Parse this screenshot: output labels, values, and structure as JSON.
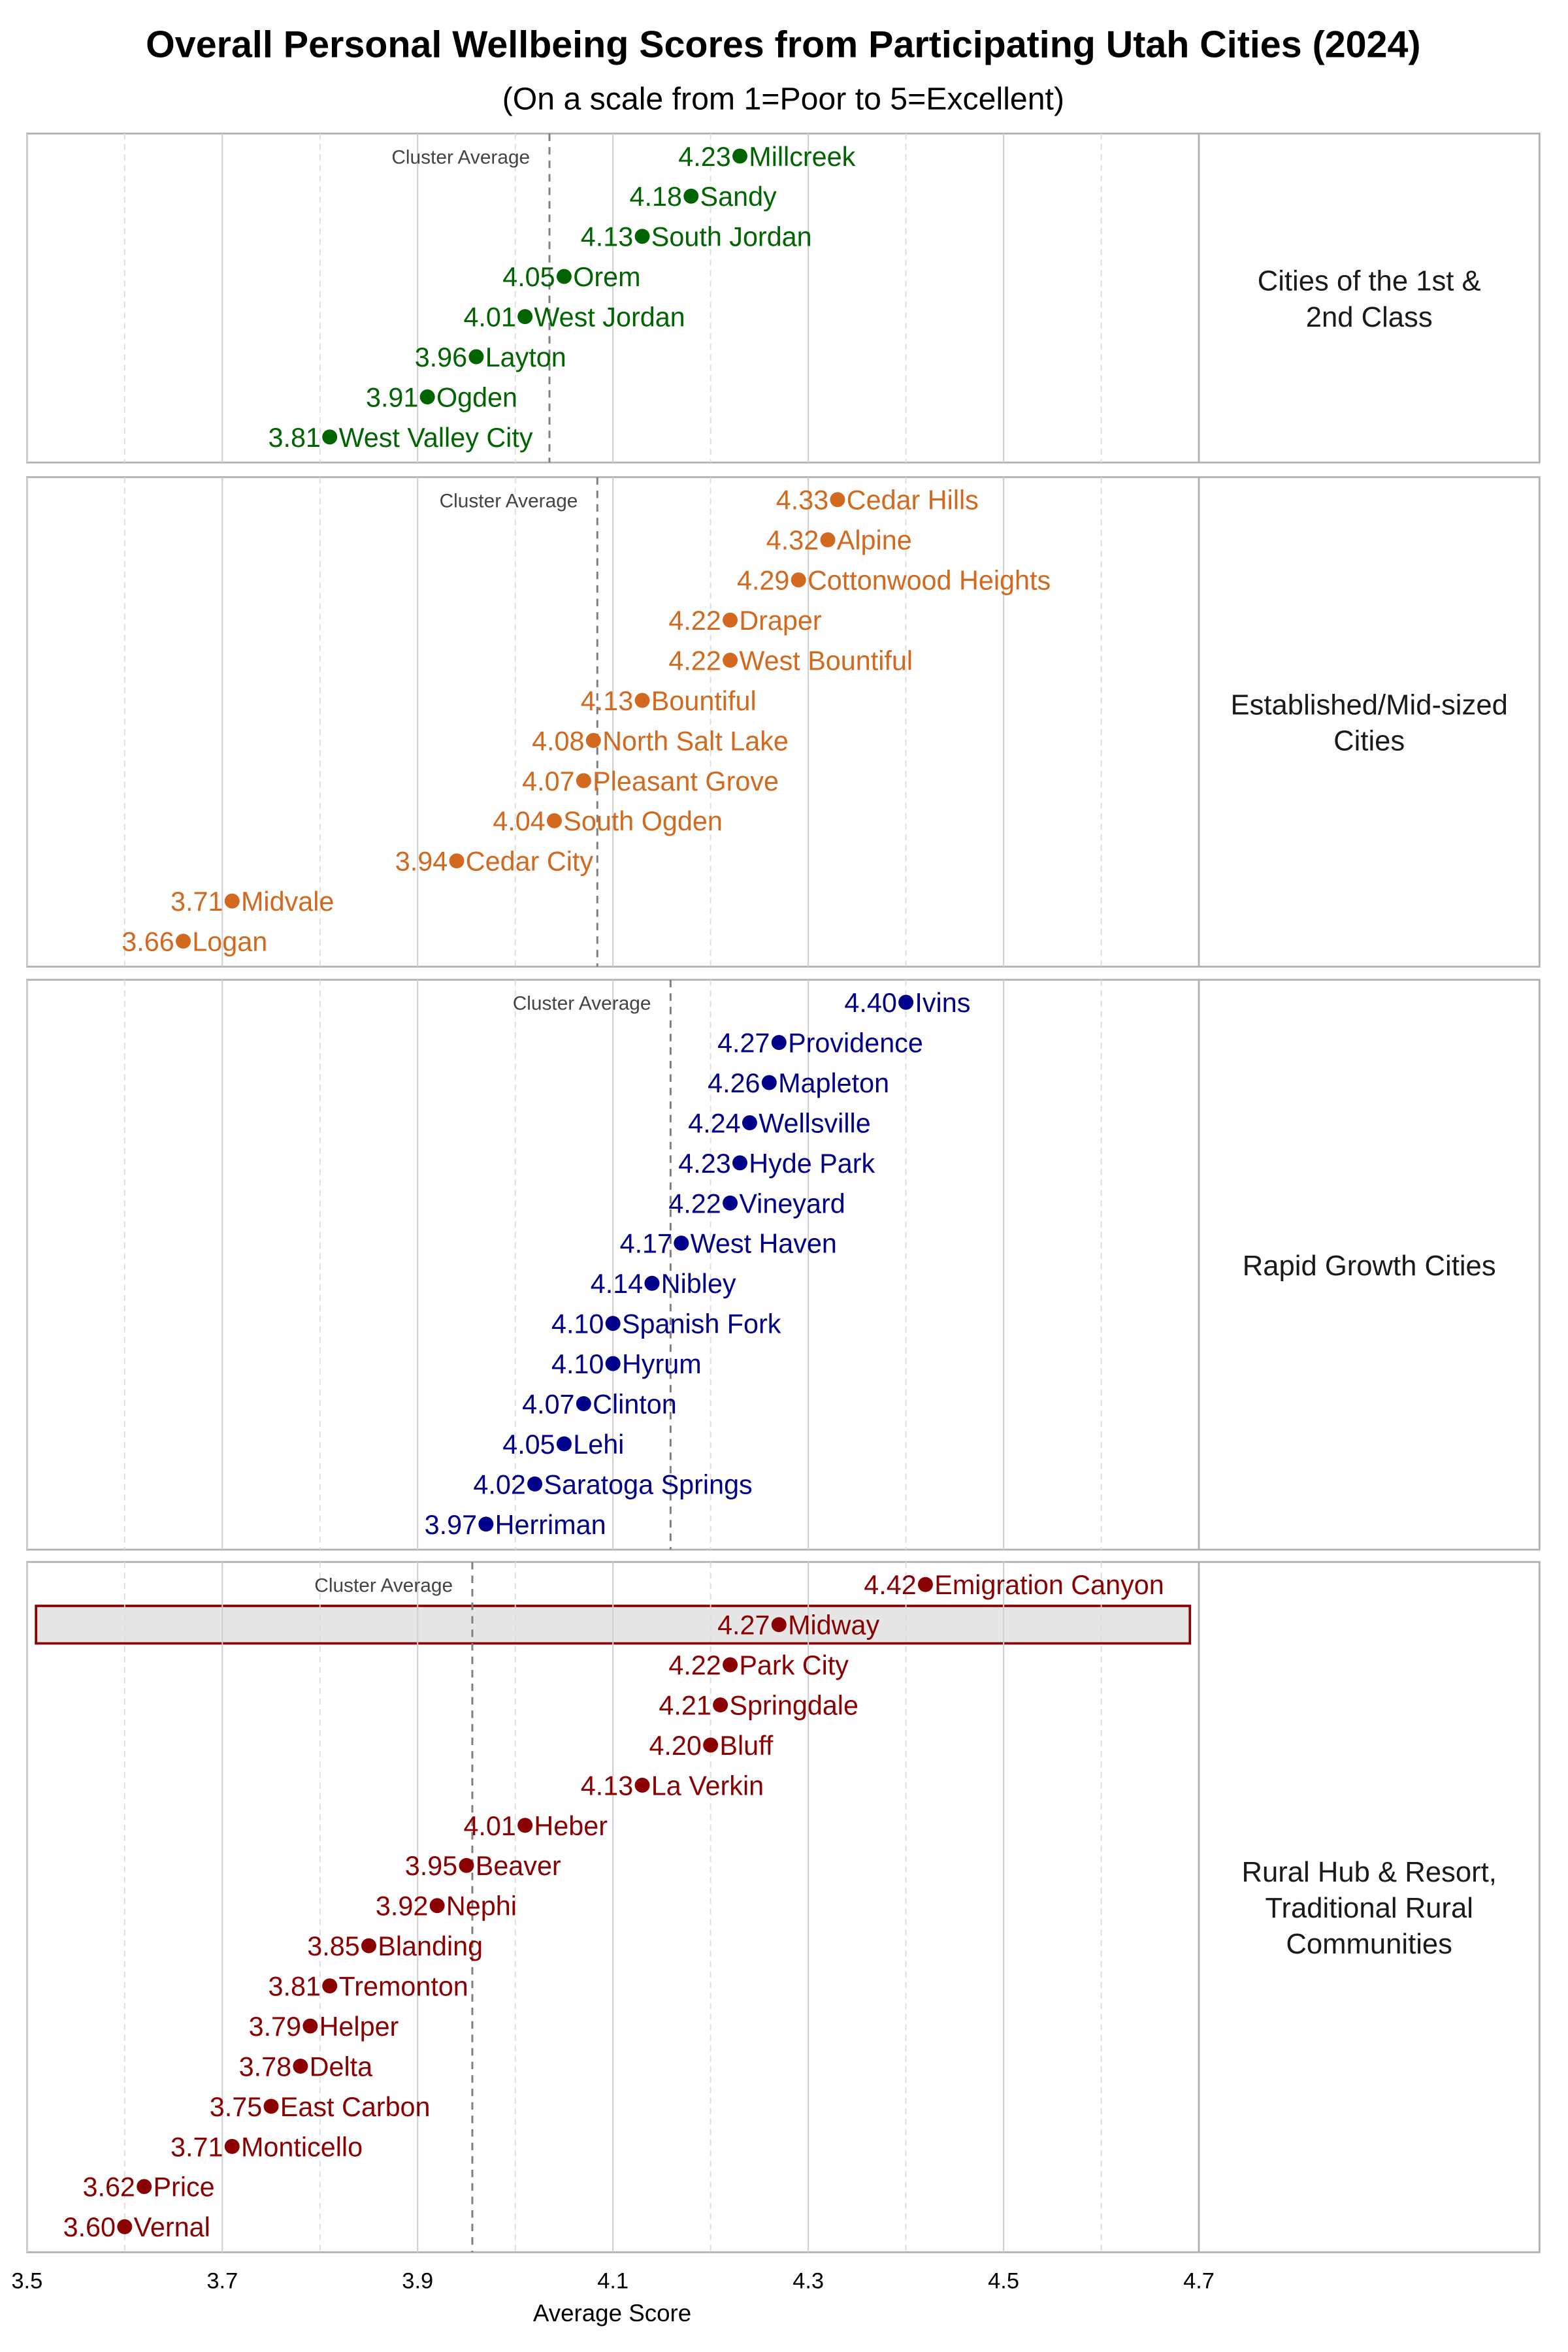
{
  "chart_data": {
    "type": "scatter",
    "title": "Overall Personal Wellbeing Scores from Participating Utah Cities (2024)",
    "subtitle": "(On a scale from 1=Poor to 5=Excellent)",
    "xlabel": "Average Score",
    "xlim": [
      3.5,
      4.7
    ],
    "xticks": [
      "3.5",
      "3.7",
      "3.9",
      "4.1",
      "4.3",
      "4.5",
      "4.7"
    ],
    "grid": true,
    "reference_line_label": "Cluster Average",
    "highlighted_city": "Midway",
    "panels": [
      {
        "name": "Cities of the 1st & 2nd Class",
        "label_lines": [
          "Cities of the 1st &",
          "2nd Class"
        ],
        "color": "#006400",
        "cluster_average": 4.035,
        "points": [
          {
            "city": "Millcreek",
            "value": 4.23
          },
          {
            "city": "Sandy",
            "value": 4.18
          },
          {
            "city": "South Jordan",
            "value": 4.13
          },
          {
            "city": "Orem",
            "value": 4.05
          },
          {
            "city": "West Jordan",
            "value": 4.01
          },
          {
            "city": "Layton",
            "value": 3.96
          },
          {
            "city": "Ogden",
            "value": 3.91
          },
          {
            "city": "West Valley City",
            "value": 3.81
          }
        ]
      },
      {
        "name": "Established/Mid-sized Cities",
        "label_lines": [
          "Established/Mid-sized",
          "Cities"
        ],
        "color": "#d2691e",
        "cluster_average": 4.084,
        "points": [
          {
            "city": "Cedar Hills",
            "value": 4.33
          },
          {
            "city": "Alpine",
            "value": 4.32
          },
          {
            "city": "Cottonwood Heights",
            "value": 4.29
          },
          {
            "city": "Draper",
            "value": 4.22
          },
          {
            "city": "West Bountiful",
            "value": 4.22
          },
          {
            "city": "Bountiful",
            "value": 4.13
          },
          {
            "city": "North Salt Lake",
            "value": 4.08
          },
          {
            "city": "Pleasant Grove",
            "value": 4.07
          },
          {
            "city": "South Ogden",
            "value": 4.04
          },
          {
            "city": "Cedar City",
            "value": 3.94
          },
          {
            "city": "Midvale",
            "value": 3.71
          },
          {
            "city": "Logan",
            "value": 3.66
          }
        ]
      },
      {
        "name": "Rapid Growth Cities",
        "label_lines": [
          "Rapid Growth Cities"
        ],
        "color": "#00008b",
        "cluster_average": 4.159,
        "points": [
          {
            "city": "Ivins",
            "value": 4.4
          },
          {
            "city": "Providence",
            "value": 4.27
          },
          {
            "city": "Mapleton",
            "value": 4.26
          },
          {
            "city": "Wellsville",
            "value": 4.24
          },
          {
            "city": "Hyde Park",
            "value": 4.23
          },
          {
            "city": "Vineyard",
            "value": 4.22
          },
          {
            "city": "West Haven",
            "value": 4.17
          },
          {
            "city": "Nibley",
            "value": 4.14
          },
          {
            "city": "Spanish Fork",
            "value": 4.1
          },
          {
            "city": "Hyrum",
            "value": 4.1
          },
          {
            "city": "Clinton",
            "value": 4.07
          },
          {
            "city": "Lehi",
            "value": 4.05
          },
          {
            "city": "Saratoga Springs",
            "value": 4.02
          },
          {
            "city": "Herriman",
            "value": 3.97
          }
        ]
      },
      {
        "name": "Rural Hub & Resort, Traditional Rural Communities",
        "label_lines": [
          "Rural Hub & Resort,",
          "Traditional Rural",
          "Communities"
        ],
        "color": "#8b0000",
        "cluster_average": 3.956,
        "points": [
          {
            "city": "Emigration Canyon",
            "value": 4.42
          },
          {
            "city": "Midway",
            "value": 4.27
          },
          {
            "city": "Park City",
            "value": 4.22
          },
          {
            "city": "Springdale",
            "value": 4.21
          },
          {
            "city": "Bluff",
            "value": 4.2
          },
          {
            "city": "La Verkin",
            "value": 4.13
          },
          {
            "city": "Heber",
            "value": 4.01
          },
          {
            "city": "Beaver",
            "value": 3.95
          },
          {
            "city": "Nephi",
            "value": 3.92
          },
          {
            "city": "Blanding",
            "value": 3.85
          },
          {
            "city": "Tremonton",
            "value": 3.81
          },
          {
            "city": "Helper",
            "value": 3.79
          },
          {
            "city": "Delta",
            "value": 3.78
          },
          {
            "city": "East Carbon",
            "value": 3.75
          },
          {
            "city": "Monticello",
            "value": 3.71
          },
          {
            "city": "Price",
            "value": 3.62
          },
          {
            "city": "Vernal",
            "value": 3.6
          }
        ]
      }
    ]
  }
}
